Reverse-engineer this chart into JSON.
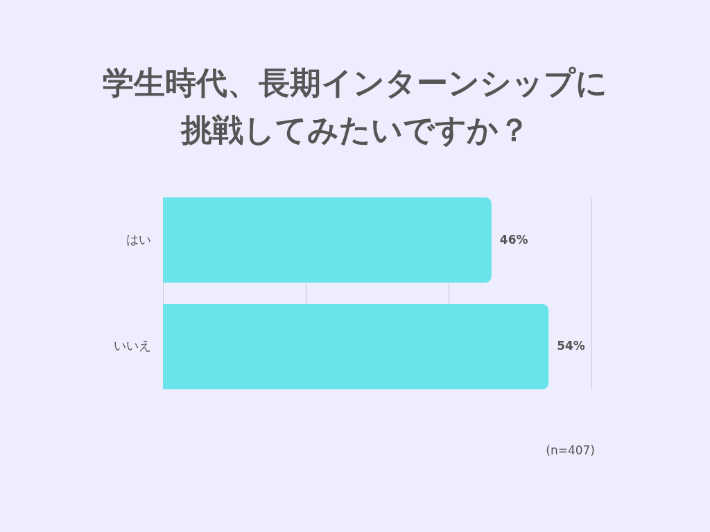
{
  "chart_data": {
    "type": "bar",
    "orientation": "horizontal",
    "title": "学生時代、長期インターンシップに挑戦してみたいですか？",
    "categories": [
      "はい",
      "いいえ"
    ],
    "series": [
      {
        "color": "#6ae4ea",
        "values": [
          46,
          54
        ],
        "value_labels": [
          "46%",
          "54%"
        ]
      }
    ],
    "xlim": [
      0,
      60
    ],
    "xticks": [
      {
        "value": 0,
        "label": null
      },
      {
        "value": 20,
        "label": null
      },
      {
        "value": 40,
        "label": null
      },
      {
        "value": 60,
        "label": null
      }
    ],
    "tick_labels": "y",
    "grid": "x",
    "legend": false,
    "annotations": [
      "(n=407)"
    ]
  }
}
